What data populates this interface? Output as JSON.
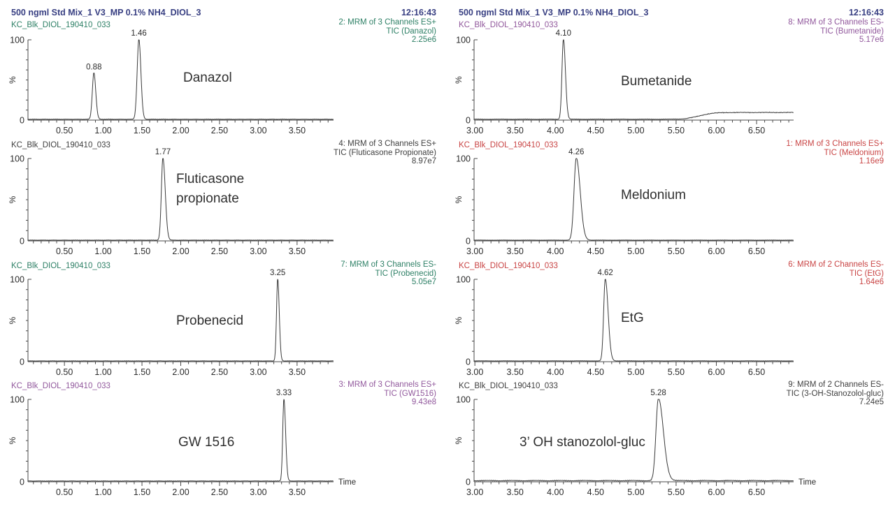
{
  "header": {
    "title": "500 ngml Std Mix_1 V3_MP 0.1% NH4_DIOL_3",
    "time": "12:16:43"
  },
  "colors": {
    "header_blue": "#383f82",
    "green": "#2e8066",
    "purple": "#91589c",
    "red": "#c94545",
    "black": "#3f3f3f",
    "trace": "#3a3a3a",
    "axis": "#4a4a4a"
  },
  "chart_data": [
    {
      "type": "line",
      "compound": "Danazol",
      "sample": "KC_Blk_DIOL_190410_033",
      "channel": "2: MRM of 3 Channels ES+",
      "tic": "TIC (Danazol)",
      "intensity": "2.25e6",
      "color": "green",
      "ylabel": "%",
      "xlabel": "Time",
      "show_time": false,
      "axis": {
        "xmin": 0.03,
        "xmax": 3.97,
        "major_step": 0.5,
        "minor_step": 0.1,
        "ymin": 0,
        "ymax": 100
      },
      "peaks": [
        {
          "rt": 0.88,
          "pct": 58,
          "label": "0.88",
          "sl": 0.02,
          "sr": 0.024
        },
        {
          "rt": 1.46,
          "pct": 100,
          "label": "1.46",
          "sl": 0.022,
          "sr": 0.026
        }
      ],
      "noise": 0.7
    },
    {
      "type": "line",
      "compound": "Fluticasone\npropionate",
      "sample": "KC_Blk_DIOL_190410_033",
      "channel": "4: MRM of 3 Channels ES+",
      "tic": "TIC (Fluticasone Propionate)",
      "intensity": "8.97e7",
      "color": "black",
      "ylabel": "%",
      "xlabel": "Time",
      "show_time": false,
      "axis": {
        "xmin": 0.03,
        "xmax": 3.97,
        "major_step": 0.5,
        "minor_step": 0.1,
        "ymin": 0,
        "ymax": 100
      },
      "peaks": [
        {
          "rt": 1.77,
          "pct": 100,
          "label": "1.77",
          "sl": 0.02,
          "sr": 0.03
        }
      ],
      "noise": 0.4
    },
    {
      "type": "line",
      "compound": "Probenecid",
      "sample": "KC_Blk_DIOL_190410_033",
      "channel": "7: MRM of 3 Channels ES-",
      "tic": "TIC (Probenecid)",
      "intensity": "5.05e7",
      "color": "green",
      "ylabel": "%",
      "xlabel": "Time",
      "show_time": false,
      "axis": {
        "xmin": 0.03,
        "xmax": 3.97,
        "major_step": 0.5,
        "minor_step": 0.1,
        "ymin": 0,
        "ymax": 100
      },
      "peaks": [
        {
          "rt": 3.25,
          "pct": 100,
          "label": "3.25",
          "sl": 0.015,
          "sr": 0.02
        }
      ],
      "noise": 0.4
    },
    {
      "type": "line",
      "compound": "GW 1516",
      "sample": "KC_Blk_DIOL_190410_033",
      "channel": "3: MRM of 3 Channels ES+",
      "tic": "TIC (GW1516)",
      "intensity": "9.43e8",
      "color": "purple",
      "ylabel": "%",
      "xlabel": "Time",
      "show_time": true,
      "axis": {
        "xmin": 0.03,
        "xmax": 3.97,
        "major_step": 0.5,
        "minor_step": 0.1,
        "ymin": 0,
        "ymax": 100
      },
      "peaks": [
        {
          "rt": 3.33,
          "pct": 100,
          "label": "3.33",
          "sl": 0.015,
          "sr": 0.022
        }
      ],
      "noise": 0.5
    },
    {
      "type": "line",
      "compound": "Bumetanide",
      "sample": "KC_Blk_DIOL_190410_033",
      "channel": "8: MRM of 3 Channels ES-",
      "tic": "TIC (Bumetanide)",
      "intensity": "5.17e6",
      "color": "purple",
      "ylabel": "%",
      "xlabel": "Time",
      "show_time": false,
      "axis": {
        "xmin": 2.99,
        "xmax": 6.96,
        "major_step": 0.5,
        "minor_step": 0.1,
        "ymin": 0,
        "ymax": 100
      },
      "peaks": [
        {
          "rt": 4.1,
          "pct": 100,
          "label": "4.10",
          "sl": 0.018,
          "sr": 0.025
        }
      ],
      "noise": 0.8,
      "rise": {
        "mid": 5.8,
        "width": 0.08,
        "level": 8.0
      }
    },
    {
      "type": "line",
      "compound": "Meldonium",
      "sample": "KC_Blk_DIOL_190410_033",
      "channel": "1: MRM of 3 Channels ES+",
      "tic": "TIC (Meldonium)",
      "intensity": "1.16e9",
      "color": "red",
      "ylabel": "%",
      "xlabel": "Time",
      "show_time": false,
      "axis": {
        "xmin": 2.99,
        "xmax": 6.96,
        "major_step": 0.5,
        "minor_step": 0.1,
        "ymin": 0,
        "ymax": 100
      },
      "peaks": [
        {
          "rt": 4.26,
          "pct": 100,
          "label": "4.26",
          "sl": 0.028,
          "sr": 0.048
        }
      ],
      "noise": 0.4
    },
    {
      "type": "line",
      "compound": "EtG",
      "sample": "KC_Blk_DIOL_190410_033",
      "channel": "6: MRM of 2 Channels ES-",
      "tic": "TIC (EtG)",
      "intensity": "1.64e6",
      "color": "red",
      "ylabel": "%",
      "xlabel": "Time",
      "show_time": false,
      "axis": {
        "xmin": 2.99,
        "xmax": 6.96,
        "major_step": 0.5,
        "minor_step": 0.1,
        "ymin": 0,
        "ymax": 100
      },
      "peaks": [
        {
          "rt": 4.62,
          "pct": 100,
          "label": "4.62",
          "sl": 0.02,
          "sr": 0.035
        }
      ],
      "noise": 0.5
    },
    {
      "type": "line",
      "compound": "3’ OH stanozolol-gluc",
      "sample": "KC_Blk_DIOL_190410_033",
      "channel": "9: MRM of 2 Channels ES-",
      "tic": "TIC (3-OH-Stanozolol-gluc)",
      "intensity": "7.24e5",
      "color": "black",
      "ylabel": "%",
      "xlabel": "Time",
      "show_time": true,
      "axis": {
        "xmin": 2.99,
        "xmax": 6.96,
        "major_step": 0.5,
        "minor_step": 0.1,
        "ymin": 0,
        "ymax": 100
      },
      "peaks": [
        {
          "rt": 5.28,
          "pct": 100,
          "label": "5.28",
          "sl": 0.03,
          "sr": 0.062
        }
      ],
      "noise": 1.4
    }
  ]
}
